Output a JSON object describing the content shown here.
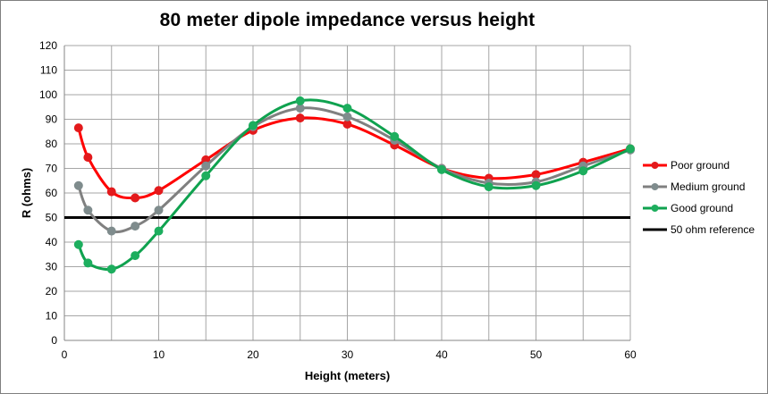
{
  "chart_data": {
    "type": "line",
    "title": "80 meter dipole impedance versus height",
    "xlabel": "Height (meters)",
    "ylabel": "R (ohms)",
    "xlim": [
      0,
      60
    ],
    "ylim": [
      0,
      120
    ],
    "x_ticks": [
      0,
      10,
      20,
      30,
      40,
      50,
      60
    ],
    "y_ticks": [
      0,
      10,
      20,
      30,
      40,
      50,
      60,
      70,
      80,
      90,
      100,
      110,
      120
    ],
    "grid": true,
    "legend_position": "right",
    "series": [
      {
        "name": "Poor ground",
        "color": "#ff0000",
        "marker_color": "#e31a1c",
        "smooth": true,
        "x": [
          1.5,
          2.5,
          5,
          7.5,
          10,
          15,
          20,
          25,
          30,
          35,
          40,
          45,
          50,
          55,
          60
        ],
        "y": [
          86.5,
          74.5,
          60.5,
          58,
          61,
          73.5,
          85.5,
          90.5,
          88,
          79.5,
          70,
          66,
          67.5,
          72.5,
          78
        ]
      },
      {
        "name": "Medium ground",
        "color": "#808080",
        "marker_color": "#7f8c8d",
        "smooth": true,
        "x": [
          1.5,
          2.5,
          5,
          7.5,
          10,
          15,
          20,
          25,
          30,
          35,
          40,
          45,
          50,
          55,
          60
        ],
        "y": [
          63,
          53,
          44.5,
          46.5,
          53,
          71,
          87,
          94.5,
          91,
          81.5,
          70,
          64,
          64.5,
          71,
          77.5
        ]
      },
      {
        "name": "Good ground",
        "color": "#0fa24f",
        "marker_color": "#1dae5e",
        "smooth": true,
        "x": [
          1.5,
          2.5,
          5,
          7.5,
          10,
          15,
          20,
          25,
          30,
          35,
          40,
          45,
          50,
          55,
          60
        ],
        "y": [
          39,
          31.5,
          29,
          34.5,
          44.5,
          67,
          87.5,
          97.5,
          94.5,
          83,
          69.5,
          62.5,
          63,
          69,
          78
        ]
      },
      {
        "name": "50 ohm reference",
        "color": "#000000",
        "smooth": false,
        "markers": false,
        "x": [
          0,
          60
        ],
        "y": [
          50,
          50
        ]
      }
    ]
  }
}
